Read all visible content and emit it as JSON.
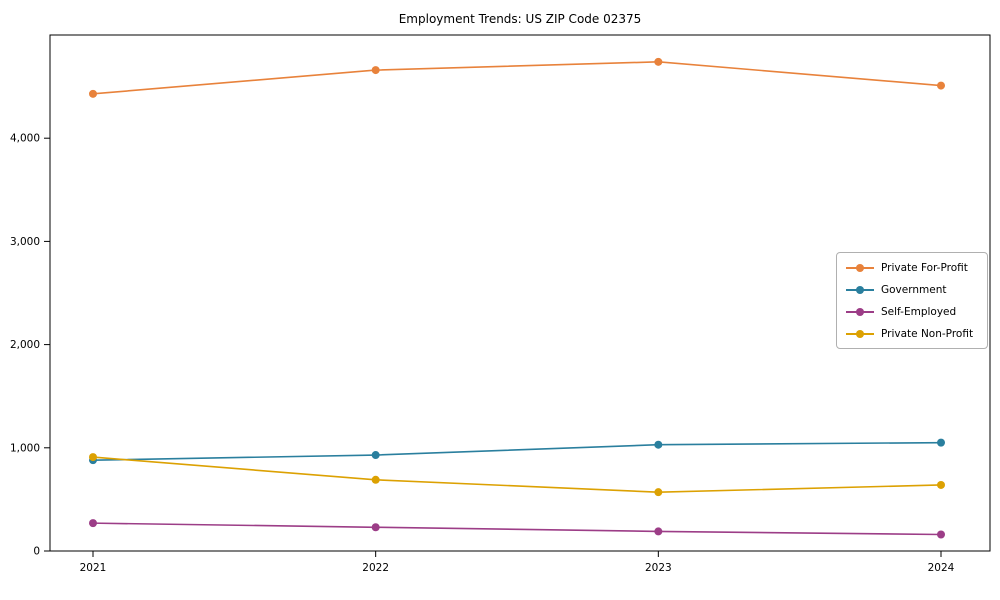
{
  "chart_data": {
    "type": "line",
    "title": "Employment Trends: US ZIP Code 02375",
    "x": [
      "2021",
      "2022",
      "2023",
      "2024"
    ],
    "series": [
      {
        "name": "Private For-Profit",
        "color": "#e8823b",
        "values": [
          4430,
          4660,
          4740,
          4510
        ]
      },
      {
        "name": "Government",
        "color": "#2a7f9e",
        "values": [
          880,
          930,
          1030,
          1050
        ]
      },
      {
        "name": "Self-Employed",
        "color": "#9c3d87",
        "values": [
          270,
          230,
          190,
          160
        ]
      },
      {
        "name": "Private Non-Profit",
        "color": "#dca102",
        "values": [
          910,
          690,
          570,
          640
        ]
      }
    ],
    "ylim": [
      0,
      5000
    ],
    "yticks": [
      0,
      1000,
      2000,
      3000,
      4000
    ],
    "ytick_labels": [
      "0",
      "1,000",
      "2,000",
      "3,000",
      "4,000"
    ],
    "grid": false,
    "legend_position": "center-right",
    "axis_color": "#000000",
    "tick_label_color": "#000000"
  }
}
